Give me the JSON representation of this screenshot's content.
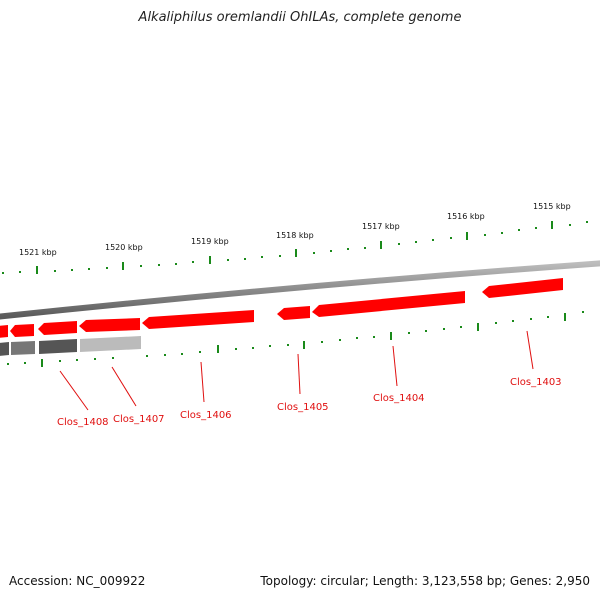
{
  "title": "Alkaliphilus oremlandii OhILAs, complete genome",
  "footer": {
    "accession": "Accession: NC_009922",
    "stats": "Topology: circular; Length: 3,123,558 bp; Genes: 2,950"
  },
  "scale_labels": [
    "1521 kbp",
    "1520 kbp",
    "1519 kbp",
    "1518 kbp",
    "1517 kbp",
    "1516 kbp",
    "1515 kbp"
  ],
  "gene_labels": [
    "Clos_1408",
    "Clos_1407",
    "Clos_1406",
    "Clos_1405",
    "Clos_1404",
    "Clos_1403"
  ],
  "colors": {
    "gene_red": "#ff0000",
    "gene_gray_dark": "#555555",
    "gene_gray_mid": "#777777",
    "gene_gray_light": "#bbbbbb",
    "backbone": "#888888",
    "tick": "#1a8a1a",
    "label": "#e01010"
  }
}
